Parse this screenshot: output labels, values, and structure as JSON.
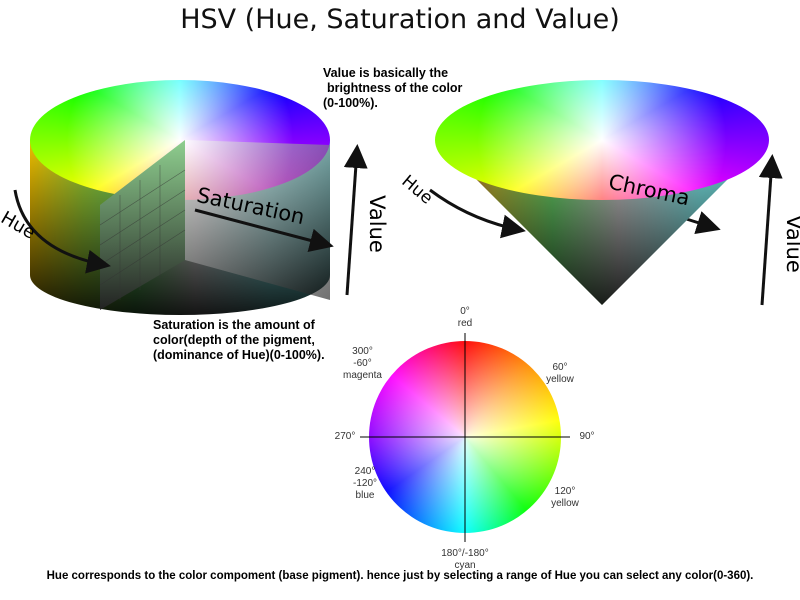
{
  "title": "HSV (Hue, Saturation and Value)",
  "cylinder": {
    "hue": "Hue",
    "saturation": "Saturation",
    "value": "Value"
  },
  "cone": {
    "hue": "Hue",
    "chroma": "Chroma",
    "value": "Value"
  },
  "value_note": [
    "Value is basically the",
    "brightness of the color",
    "(0-100%)."
  ],
  "saturation_note": [
    "Saturation is the amount of",
    "color(depth of the pigment,",
    "(dominance of Hue)(0-100%)."
  ],
  "wheel": {
    "labels": [
      {
        "lines": [
          "0°",
          "red"
        ]
      },
      {
        "lines": [
          "60°",
          "yellow"
        ]
      },
      {
        "lines": [
          "90°"
        ]
      },
      {
        "lines": [
          "120°",
          "yellow"
        ]
      },
      {
        "lines": [
          "180°/-180°",
          "cyan"
        ]
      },
      {
        "lines": [
          "240°",
          "-120°",
          "blue"
        ]
      },
      {
        "lines": [
          "270°"
        ]
      },
      {
        "lines": [
          "300°",
          "-60°",
          "magenta"
        ]
      }
    ]
  },
  "footer": "Hue corresponds to the color compoment (base pigment). hence just by selecting a range of Hue you can select any color(0-360)."
}
